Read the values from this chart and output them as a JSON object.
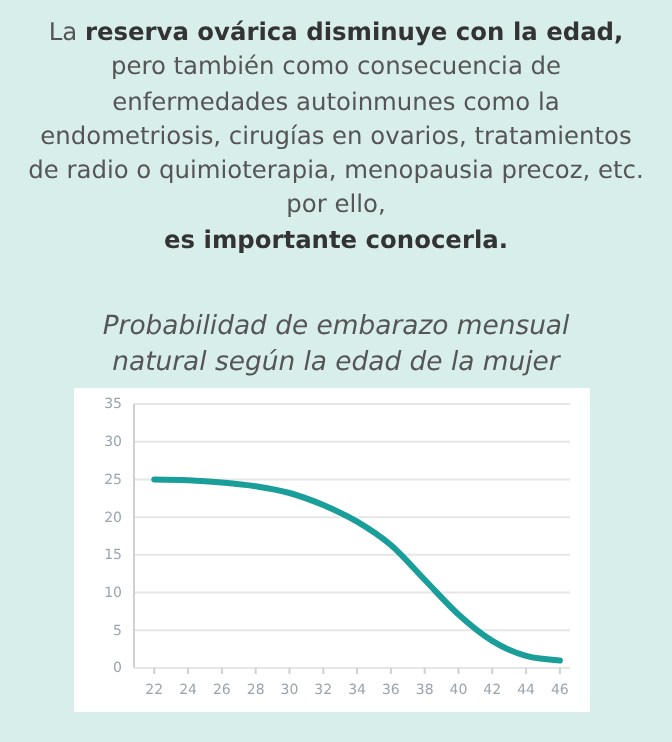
{
  "chart_data": {
    "type": "line",
    "title": "Probabilidad de embarazo mensual natural según la edad de la mujer",
    "annotations": [
      "La ",
      "reserva ovárica disminuye con la edad,",
      " pero también como consecuencia de enfermedades autoinmunes como la endometriosis, cirugías en ovarios, tratamientos de radio o quimioterapia, menopausia precoz, etc. por ello,",
      "es importante conocerla."
    ],
    "x": [
      22,
      24,
      26,
      28,
      30,
      32,
      34,
      36,
      38,
      40,
      42,
      44,
      46
    ],
    "series": [
      {
        "color": "#1a9e9a",
        "values": [
          25,
          24.9,
          24.6,
          24.1,
          23.2,
          21.6,
          19.4,
          16.3,
          11.7,
          7.1,
          3.6,
          1.6,
          1.0
        ]
      }
    ],
    "xlim": [
      20.8,
      46.6
    ],
    "xticks": [
      22,
      24,
      26,
      28,
      30,
      32,
      34,
      36,
      38,
      40,
      42,
      44,
      46
    ],
    "ylim": [
      0,
      35
    ],
    "yticks": [
      0,
      5,
      10,
      15,
      20,
      25,
      30,
      35
    ],
    "grid": "y",
    "marker": "none",
    "line_style": "solid"
  }
}
